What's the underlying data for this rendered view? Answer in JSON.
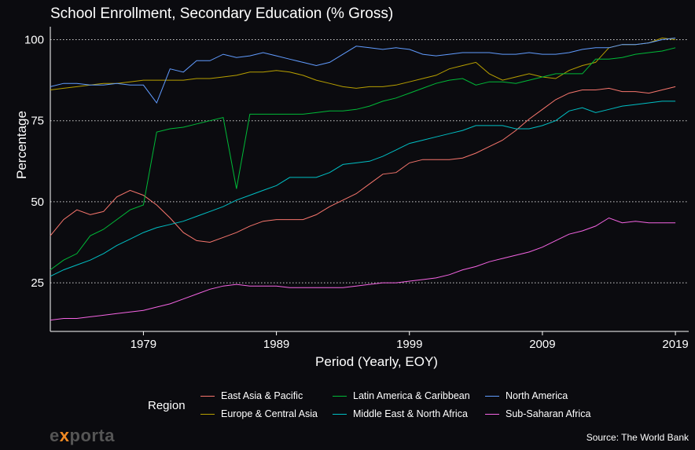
{
  "chart_data": {
    "type": "line",
    "title": "School Enrollment, Secondary Education (% Gross)",
    "xlabel": "Period (Yearly, EOY)",
    "ylabel": "Percentage",
    "xlim": [
      1972,
      2020
    ],
    "ylim": [
      10,
      104
    ],
    "x_ticks": [
      1979,
      1989,
      1999,
      2009,
      2019
    ],
    "y_ticks": [
      25,
      50,
      75,
      100
    ],
    "grid": "horizontal dotted",
    "legend_title": "Region",
    "x": [
      1972,
      1973,
      1974,
      1975,
      1976,
      1977,
      1978,
      1979,
      1980,
      1981,
      1982,
      1983,
      1984,
      1985,
      1986,
      1987,
      1988,
      1989,
      1990,
      1991,
      1992,
      1993,
      1994,
      1995,
      1996,
      1997,
      1998,
      1999,
      2000,
      2001,
      2002,
      2003,
      2004,
      2005,
      2006,
      2007,
      2008,
      2009,
      2010,
      2011,
      2012,
      2013,
      2014,
      2015,
      2016,
      2017,
      2018,
      2019
    ],
    "series": [
      {
        "name": "East Asia & Pacific",
        "color": "#f8766d",
        "values": [
          39.5,
          44.5,
          47.5,
          46,
          47,
          51.5,
          53.5,
          52,
          49,
          45,
          40.5,
          38,
          37.5,
          39,
          40.5,
          42.5,
          44,
          44.5,
          44.5,
          44.5,
          46,
          48.5,
          50.5,
          52.5,
          55.5,
          58.5,
          59,
          62,
          63,
          63,
          63,
          63.5,
          65,
          67,
          69,
          72,
          75.5,
          78.5,
          81.5,
          83.5,
          84.5,
          84.5,
          85,
          84,
          84,
          83.5,
          84.5,
          85.5
        ]
      },
      {
        "name": "Europe & Central Asia",
        "color": "#b79f00",
        "values": [
          84.5,
          85,
          85.5,
          86,
          86.5,
          86.5,
          87,
          87.5,
          87.5,
          87.5,
          87.5,
          88,
          88,
          88.5,
          89,
          90,
          90,
          90.5,
          90,
          89,
          87.5,
          86.5,
          85.5,
          85,
          85.5,
          85.5,
          86,
          87,
          88,
          89,
          91,
          92,
          93,
          89.5,
          87.5,
          88.5,
          89.5,
          88.5,
          88,
          90.5,
          92,
          93,
          97.5,
          98.5,
          98.5,
          99,
          100.5,
          100
        ]
      },
      {
        "name": "Latin America & Caribbean",
        "color": "#00ba38",
        "values": [
          29,
          32,
          34,
          39.5,
          41.5,
          44.5,
          47.5,
          49,
          71.5,
          72.5,
          73,
          74,
          75,
          76,
          54,
          77,
          77,
          77,
          77,
          77,
          77.5,
          78,
          78,
          78.5,
          79.5,
          81,
          82,
          83.5,
          85,
          86.5,
          87.5,
          88,
          86,
          87,
          87,
          86.5,
          87.5,
          88.5,
          89.5,
          89.5,
          89.5,
          94,
          94,
          94.5,
          95.5,
          96,
          96.5,
          97.5
        ]
      },
      {
        "name": "Middle East & North Africa",
        "color": "#00bfc4",
        "values": [
          27,
          29,
          30.5,
          32,
          34,
          36.5,
          38.5,
          40.5,
          42,
          43,
          44,
          45.5,
          47,
          48.5,
          50.5,
          52,
          53.5,
          55,
          57.5,
          57.5,
          57.5,
          59,
          61.5,
          62,
          62.5,
          64,
          66,
          68,
          69,
          70,
          71,
          72,
          73.5,
          73.5,
          73.5,
          72.5,
          72.5,
          73.5,
          75,
          78,
          79,
          77.5,
          78.5,
          79.5,
          80,
          80.5,
          81,
          81
        ]
      },
      {
        "name": "North America",
        "color": "#619cff",
        "values": [
          85.5,
          86.5,
          86.5,
          86,
          86,
          86.5,
          86,
          86,
          80.5,
          91,
          90,
          93.5,
          93.5,
          95.5,
          94.5,
          95,
          96,
          95,
          94,
          93,
          92,
          93,
          95.5,
          98,
          97.5,
          97,
          97.5,
          97,
          95.5,
          95,
          95.5,
          96,
          96,
          96,
          95.5,
          95.5,
          96,
          95.5,
          95.5,
          96,
          97,
          97.5,
          97.5,
          98.5,
          98.5,
          99,
          100,
          100.5
        ]
      },
      {
        "name": "Sub-Saharan Africa",
        "color": "#f564e3",
        "values": [
          13.5,
          14,
          14,
          14.5,
          15,
          15.5,
          16,
          16.5,
          17.5,
          18.5,
          20,
          21.5,
          23,
          24,
          24.5,
          24,
          24,
          24,
          23.5,
          23.5,
          23.5,
          23.5,
          23.5,
          24,
          24.5,
          25,
          25,
          25.5,
          26,
          26.5,
          27.5,
          29,
          30,
          31.5,
          32.5,
          33.5,
          34.5,
          36,
          38,
          40,
          41,
          42.5,
          45,
          43.5,
          44,
          43.5,
          43.5,
          43.5
        ]
      }
    ]
  },
  "footer": {
    "logo_ex": "e",
    "logo_x": "x",
    "logo_rest": "porta",
    "source": "Source: The World Bank"
  }
}
